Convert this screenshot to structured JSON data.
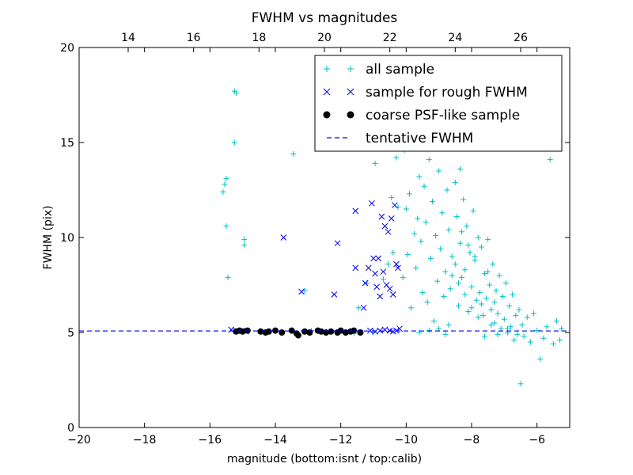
{
  "chart_data": {
    "type": "scatter",
    "title": "FWHM vs magnitudes",
    "xlabel": "magnitude (bottom:isnt / top:calib)",
    "ylabel": "FWHM (pix)",
    "xlim": [
      -20,
      -5
    ],
    "ylim": [
      0,
      20
    ],
    "top_xlim": [
      12.5,
      27.5
    ],
    "x_ticks": [
      -20,
      -18,
      -16,
      -14,
      -12,
      -10,
      -8,
      -6
    ],
    "y_ticks": [
      0,
      5,
      10,
      15,
      20
    ],
    "top_x_ticks": [
      14,
      16,
      18,
      20,
      22,
      24,
      26
    ],
    "legend_position": "top-right",
    "grid": false,
    "series": [
      {
        "name": "all sample",
        "marker": "plus",
        "color": "#00bfbf",
        "points": [
          [
            -15.6,
            12.4
          ],
          [
            -15.55,
            12.8
          ],
          [
            -15.5,
            13.1
          ],
          [
            -15.5,
            10.6
          ],
          [
            -15.45,
            7.9
          ],
          [
            -15.25,
            17.7
          ],
          [
            -15.2,
            17.6
          ],
          [
            -15.25,
            15.0
          ],
          [
            -14.95,
            9.9
          ],
          [
            -14.95,
            9.6
          ],
          [
            -13.45,
            14.4
          ],
          [
            -13.1,
            7.2
          ],
          [
            -12.9,
            5.1
          ],
          [
            -12.3,
            5.05
          ],
          [
            -11.6,
            4.95
          ],
          [
            -11.45,
            6.3
          ],
          [
            -11.2,
            7.6
          ],
          [
            -11.0,
            5.0
          ],
          [
            -10.95,
            13.9
          ],
          [
            -10.85,
            16.4
          ],
          [
            -10.7,
            7.8
          ],
          [
            -10.55,
            8.6
          ],
          [
            -10.45,
            12.1
          ],
          [
            -10.4,
            9.2
          ],
          [
            -10.3,
            14.2
          ],
          [
            -10.25,
            11.6
          ],
          [
            -10.1,
            7.9
          ],
          [
            -10.05,
            14.6
          ],
          [
            -10.0,
            11.5
          ],
          [
            -9.95,
            9.1
          ],
          [
            -9.9,
            12.3
          ],
          [
            -9.85,
            6.3
          ],
          [
            -9.8,
            15.0
          ],
          [
            -9.75,
            10.2
          ],
          [
            -9.7,
            8.4
          ],
          [
            -9.65,
            11.0
          ],
          [
            -9.6,
            13.2
          ],
          [
            -9.55,
            9.8
          ],
          [
            -9.5,
            7.1
          ],
          [
            -9.45,
            12.7
          ],
          [
            -9.4,
            10.8
          ],
          [
            -9.35,
            6.6
          ],
          [
            -9.3,
            14.1
          ],
          [
            -9.25,
            8.9
          ],
          [
            -9.2,
            11.9
          ],
          [
            -9.15,
            5.6
          ],
          [
            -9.1,
            10.1
          ],
          [
            -9.05,
            7.7
          ],
          [
            -9.0,
            13.5
          ],
          [
            -8.95,
            9.4
          ],
          [
            -8.9,
            11.3
          ],
          [
            -8.85,
            6.9
          ],
          [
            -8.8,
            8.2
          ],
          [
            -8.75,
            12.5
          ],
          [
            -8.7,
            10.4
          ],
          [
            -8.65,
            7.3
          ],
          [
            -8.6,
            9.0
          ],
          [
            -8.55,
            14.8
          ],
          [
            -8.5,
            8.6
          ],
          [
            -8.45,
            11.1
          ],
          [
            -8.4,
            6.4
          ],
          [
            -8.35,
            9.7
          ],
          [
            -8.3,
            7.9
          ],
          [
            -8.25,
            12.0
          ],
          [
            -8.2,
            8.3
          ],
          [
            -8.15,
            10.6
          ],
          [
            -8.1,
            6.1
          ],
          [
            -8.05,
            9.2
          ],
          [
            -8.0,
            7.4
          ],
          [
            -7.95,
            11.4
          ],
          [
            -7.9,
            8.8
          ],
          [
            -7.85,
            6.7
          ],
          [
            -7.8,
            10.0
          ],
          [
            -7.75,
            7.1
          ],
          [
            -7.7,
            9.5
          ],
          [
            -7.65,
            5.9
          ],
          [
            -7.6,
            8.1
          ],
          [
            -7.55,
            6.8
          ],
          [
            -7.5,
            9.9
          ],
          [
            -7.45,
            7.5
          ],
          [
            -7.4,
            6.2
          ],
          [
            -7.35,
            8.6
          ],
          [
            -7.3,
            5.5
          ],
          [
            -7.25,
            7.2
          ],
          [
            -7.2,
            6.0
          ],
          [
            -7.15,
            8.0
          ],
          [
            -7.1,
            5.2
          ],
          [
            -7.05,
            6.9
          ],
          [
            -7.0,
            5.7
          ],
          [
            -6.95,
            7.6
          ],
          [
            -6.9,
            5.0
          ],
          [
            -6.85,
            6.4
          ],
          [
            -6.8,
            5.3
          ],
          [
            -6.75,
            7.0
          ],
          [
            -6.7,
            4.6
          ],
          [
            -6.65,
            5.9
          ],
          [
            -6.6,
            4.9
          ],
          [
            -6.55,
            6.2
          ],
          [
            -6.5,
            2.3
          ],
          [
            -6.45,
            5.4
          ],
          [
            -6.4,
            4.8
          ],
          [
            -6.3,
            5.8
          ],
          [
            -6.2,
            4.5
          ],
          [
            -6.1,
            6.0
          ],
          [
            -6.0,
            5.1
          ],
          [
            -5.9,
            3.6
          ],
          [
            -5.8,
            4.7
          ],
          [
            -5.7,
            5.3
          ],
          [
            -5.6,
            14.1
          ],
          [
            -5.5,
            4.4
          ],
          [
            -5.4,
            5.6
          ],
          [
            -5.3,
            4.6
          ],
          [
            -5.25,
            5.2
          ],
          [
            -8.3,
            10.3
          ],
          [
            -8.1,
            9.6
          ],
          [
            -7.9,
            9.0
          ],
          [
            -8.6,
            8.0
          ],
          [
            -8.4,
            7.6
          ],
          [
            -7.7,
            6.5
          ],
          [
            -7.5,
            8.2
          ],
          [
            -7.3,
            6.6
          ],
          [
            -8.2,
            7.0
          ],
          [
            -8.0,
            6.3
          ],
          [
            -7.8,
            5.8
          ],
          [
            -8.7,
            5.4
          ],
          [
            -9.0,
            5.2
          ],
          [
            -9.3,
            5.1
          ],
          [
            -9.6,
            5.0
          ],
          [
            -8.8,
            4.9
          ],
          [
            -7.6,
            4.8
          ],
          [
            -7.2,
            4.9
          ],
          [
            -6.9,
            5.2
          ],
          [
            -7.4,
            5.4
          ],
          [
            -8.5,
            12.9
          ],
          [
            -8.35,
            13.6
          ],
          [
            -9.1,
            15.6
          ],
          [
            -9.45,
            16.3
          ],
          [
            -8.9,
            17.2
          ]
        ]
      },
      {
        "name": "sample for rough FWHM",
        "marker": "x",
        "color": "#0000ff",
        "points": [
          [
            -15.35,
            5.15
          ],
          [
            -15.2,
            5.1
          ],
          [
            -15.0,
            5.1
          ],
          [
            -14.9,
            5.05
          ],
          [
            -13.75,
            10.0
          ],
          [
            -13.2,
            7.15
          ],
          [
            -12.2,
            7.0
          ],
          [
            -12.1,
            9.7
          ],
          [
            -11.55,
            11.4
          ],
          [
            -11.55,
            8.4
          ],
          [
            -11.3,
            6.3
          ],
          [
            -11.25,
            7.6
          ],
          [
            -11.15,
            8.4
          ],
          [
            -11.05,
            11.8
          ],
          [
            -11.0,
            8.9
          ],
          [
            -10.95,
            8.1
          ],
          [
            -10.9,
            7.4
          ],
          [
            -10.85,
            8.9
          ],
          [
            -10.8,
            6.9
          ],
          [
            -10.75,
            11.1
          ],
          [
            -10.7,
            8.2
          ],
          [
            -10.65,
            10.6
          ],
          [
            -10.6,
            7.5
          ],
          [
            -10.55,
            10.3
          ],
          [
            -10.5,
            7.3
          ],
          [
            -10.45,
            11.0
          ],
          [
            -10.4,
            7.0
          ],
          [
            -10.35,
            11.7
          ],
          [
            -10.3,
            8.6
          ],
          [
            -10.25,
            8.4
          ],
          [
            -11.1,
            5.1
          ],
          [
            -10.95,
            5.05
          ],
          [
            -10.8,
            5.1
          ],
          [
            -10.65,
            5.15
          ],
          [
            -10.5,
            5.1
          ],
          [
            -10.4,
            5.05
          ],
          [
            -10.3,
            5.1
          ],
          [
            -10.2,
            5.2
          ]
        ]
      },
      {
        "name": "coarse PSF-like sample",
        "marker": "circle",
        "color": "#000000",
        "points": [
          [
            -15.2,
            5.05
          ],
          [
            -15.1,
            5.1
          ],
          [
            -15.0,
            5.05
          ],
          [
            -14.85,
            5.1
          ],
          [
            -14.45,
            5.05
          ],
          [
            -14.3,
            5.0
          ],
          [
            -14.2,
            5.05
          ],
          [
            -14.0,
            5.1
          ],
          [
            -13.8,
            5.0
          ],
          [
            -13.5,
            5.1
          ],
          [
            -13.35,
            4.95
          ],
          [
            -13.3,
            4.85
          ],
          [
            -13.1,
            5.05
          ],
          [
            -12.95,
            5.0
          ],
          [
            -12.7,
            5.1
          ],
          [
            -12.6,
            5.05
          ],
          [
            -12.45,
            5.0
          ],
          [
            -12.3,
            5.05
          ],
          [
            -12.1,
            5.0
          ],
          [
            -12.0,
            5.1
          ],
          [
            -11.85,
            5.0
          ],
          [
            -11.7,
            5.05
          ],
          [
            -11.6,
            5.1
          ],
          [
            -11.4,
            5.0
          ]
        ]
      },
      {
        "name": "tentative FWHM",
        "marker": "dashed-line",
        "color": "#0000ff",
        "y": 5.08
      }
    ]
  }
}
